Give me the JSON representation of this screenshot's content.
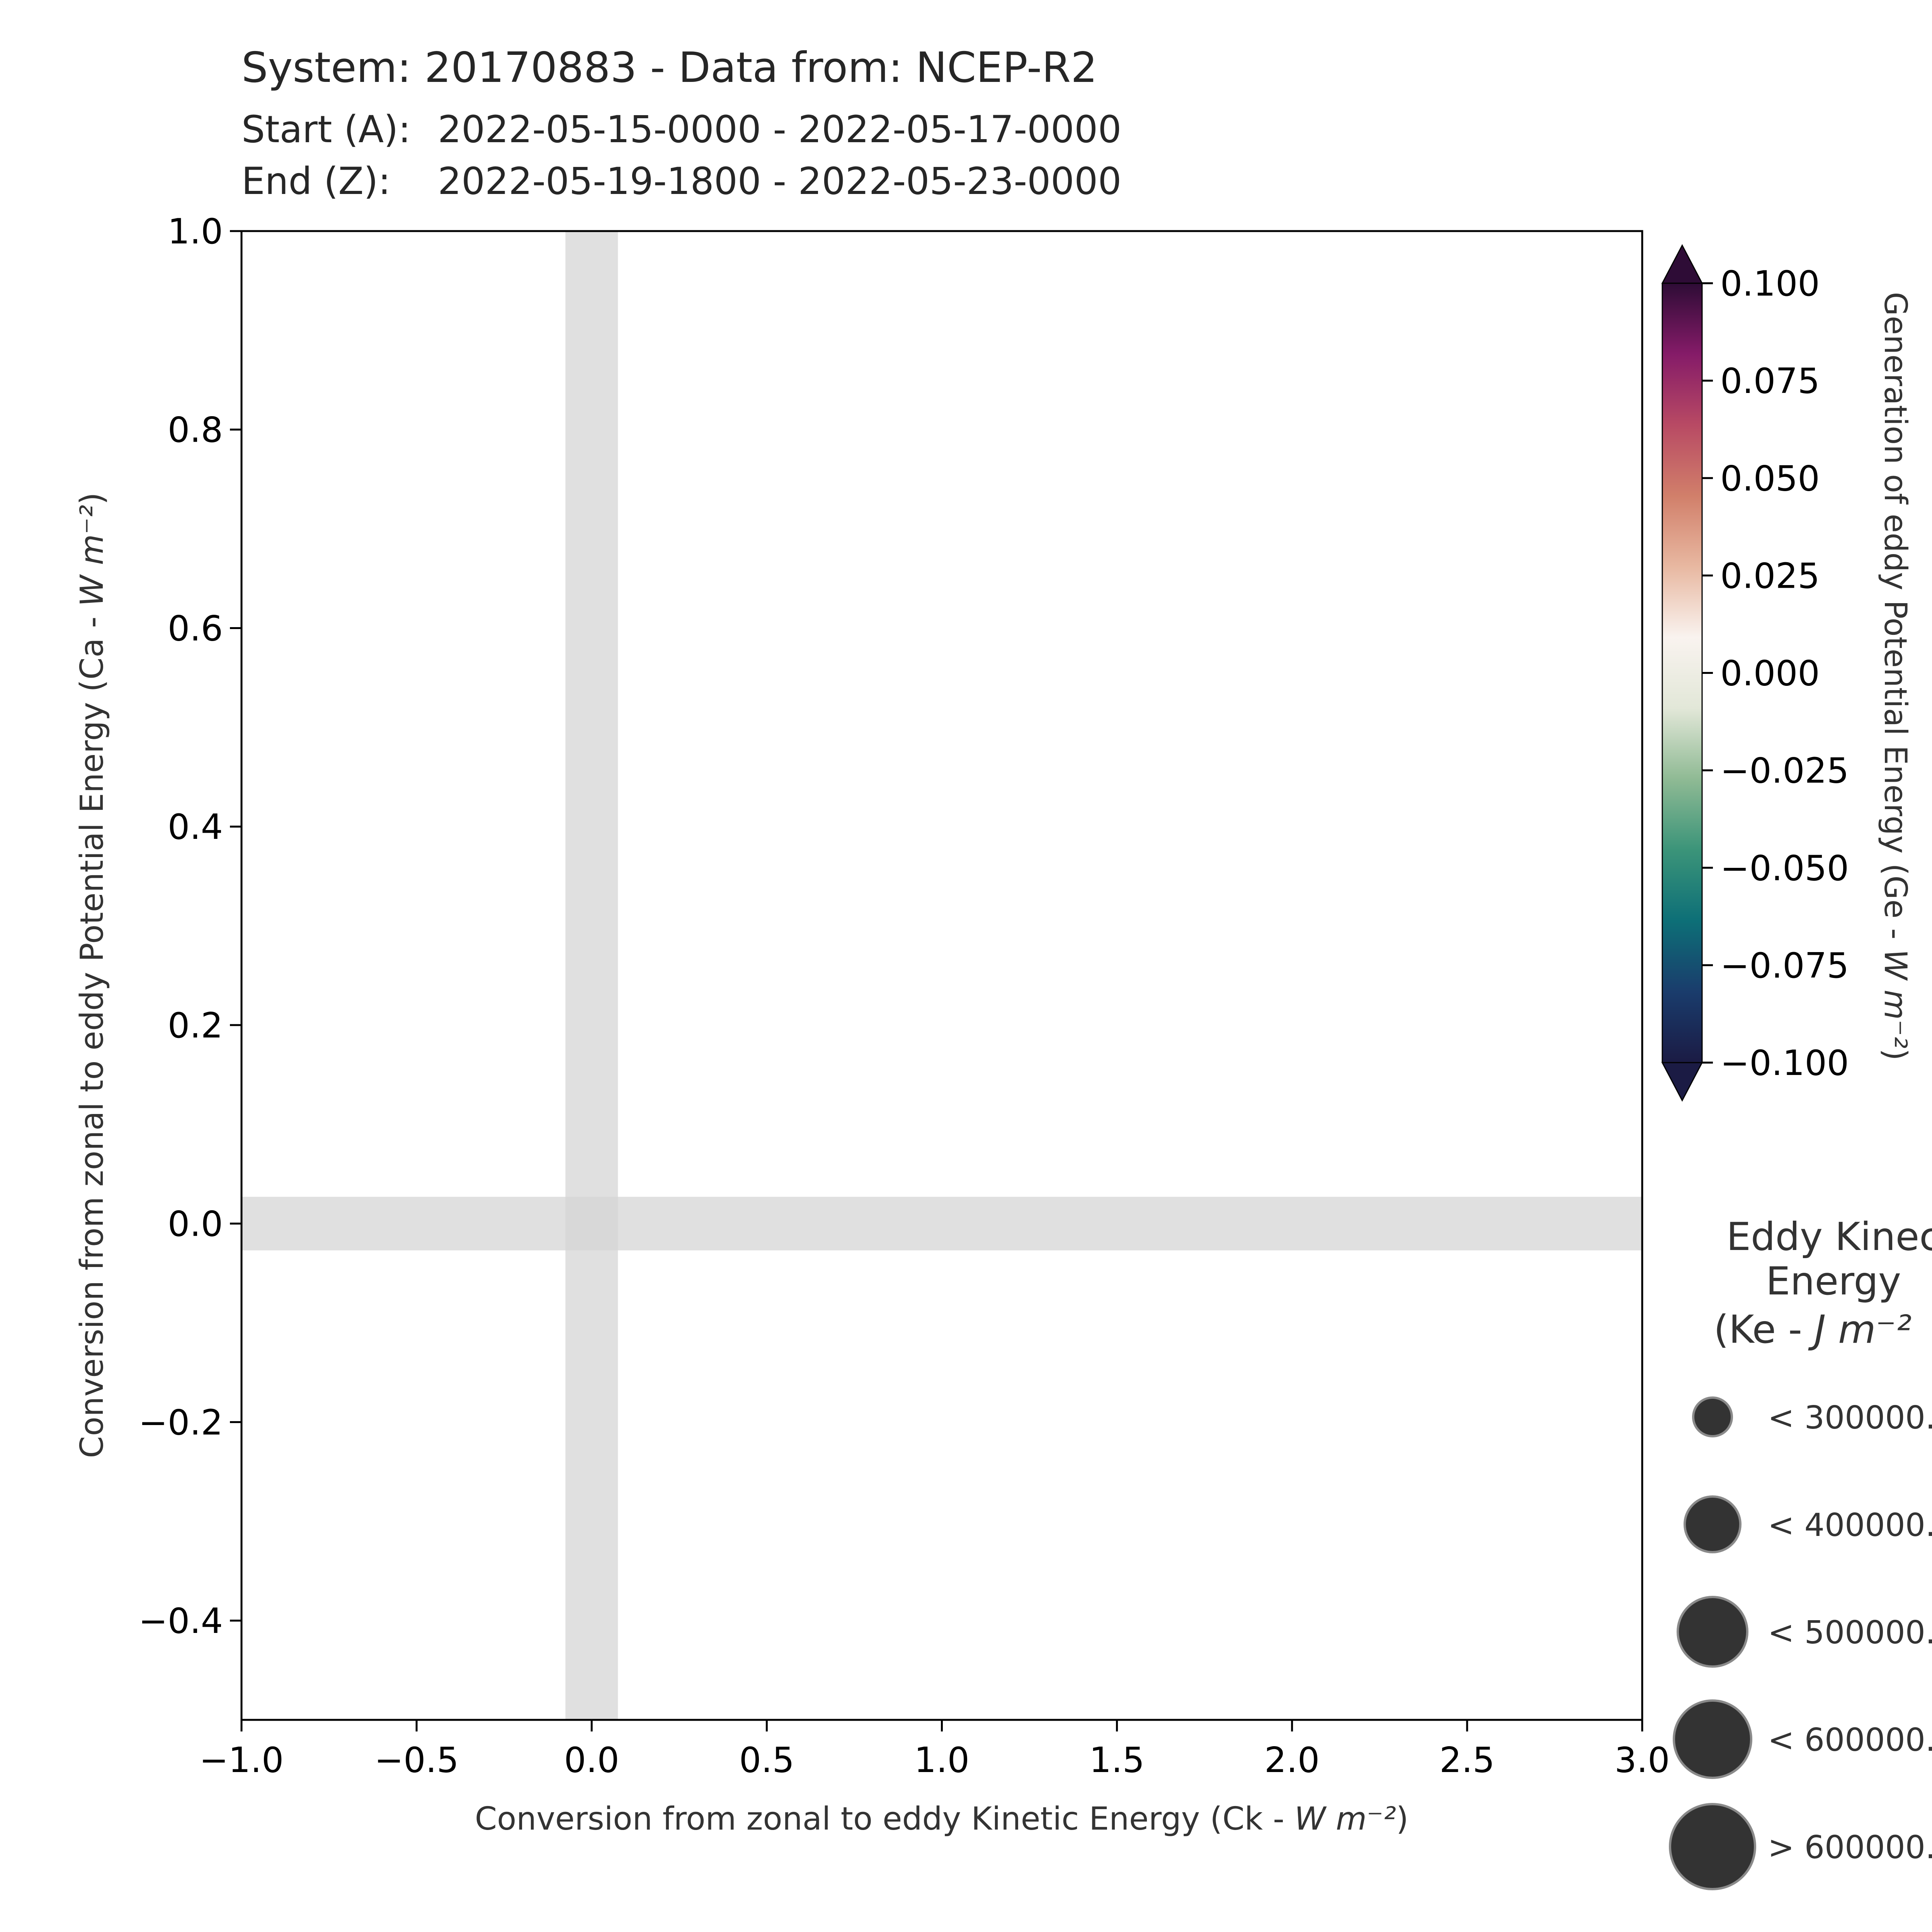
{
  "chart_data": {
    "type": "scatter",
    "title": "System: 20170883 - Data from: NCEP-R2",
    "subtitles": [
      {
        "label": "Start (A):",
        "value": "2022-05-15-0000 - 2022-05-17-0000"
      },
      {
        "label": "End (Z):",
        "value": "2022-05-19-1800 - 2022-05-23-0000"
      }
    ],
    "xlabel": "Conversion from zonal to eddy Kinetic Energy (Ck - ",
    "xlabel_unit": "W m⁻²",
    "xlabel_close": ")",
    "ylabel": "Conversion from zonal to eddy Potential Energy (Ca - ",
    "ylabel_unit": "W m⁻²",
    "ylabel_close": ")",
    "xlim": [
      -1.0,
      3.0
    ],
    "ylim": [
      -0.5,
      1.0
    ],
    "xticks": [
      -1.0,
      -0.5,
      0.0,
      0.5,
      1.0,
      1.5,
      2.0,
      2.5,
      3.0
    ],
    "xtick_labels": [
      "−1.0",
      "−0.5",
      "0.0",
      "0.5",
      "1.0",
      "1.5",
      "2.0",
      "2.5",
      "3.0"
    ],
    "yticks": [
      -0.4,
      -0.2,
      0.0,
      0.2,
      0.4,
      0.6,
      0.8,
      1.0
    ],
    "ytick_labels": [
      "−0.4",
      "−0.2",
      "0.0",
      "0.2",
      "0.4",
      "0.6",
      "0.8",
      "1.0"
    ],
    "zero_bands": {
      "x_halfwidth": 0.075,
      "y_halfwidth": 0.027,
      "color": "#d6d6d6"
    },
    "grid": false,
    "points": [],
    "colorbar": {
      "label": "Generation of eddy Potential Energy (Ge - ",
      "label_unit": "W m⁻²",
      "label_close": ")",
      "range": [
        -0.1,
        0.1
      ],
      "ticks": [
        0.1,
        0.075,
        0.05,
        0.025,
        0.0,
        -0.025,
        -0.05,
        -0.075,
        -0.1
      ],
      "tick_labels": [
        "0.100",
        "0.075",
        "0.050",
        "0.025",
        "0.000",
        "−0.025",
        "−0.050",
        "−0.075",
        "−0.100"
      ],
      "extend": "both",
      "colormap_stops": [
        "#1b1b44",
        "#1a3c6c",
        "#0d6f77",
        "#3b9479",
        "#8fba94",
        "#e2e7d8",
        "#f9f3ef",
        "#e8b8a1",
        "#d17f6a",
        "#b84a64",
        "#851b68",
        "#2e0c36"
      ]
    },
    "size_legend": {
      "title_lines": [
        "Eddy Kinec",
        "Energy",
        "(Ke - "
      ],
      "title_unit": "J m⁻²",
      "entries": [
        {
          "label": "< 300000.",
          "size_level": 1
        },
        {
          "label": "< 400000.",
          "size_level": 2
        },
        {
          "label": "< 500000.",
          "size_level": 3
        },
        {
          "label": "< 600000.",
          "size_level": 4
        },
        {
          "label": "> 600000.",
          "size_level": 5
        }
      ],
      "marker_color": "#333333"
    }
  }
}
